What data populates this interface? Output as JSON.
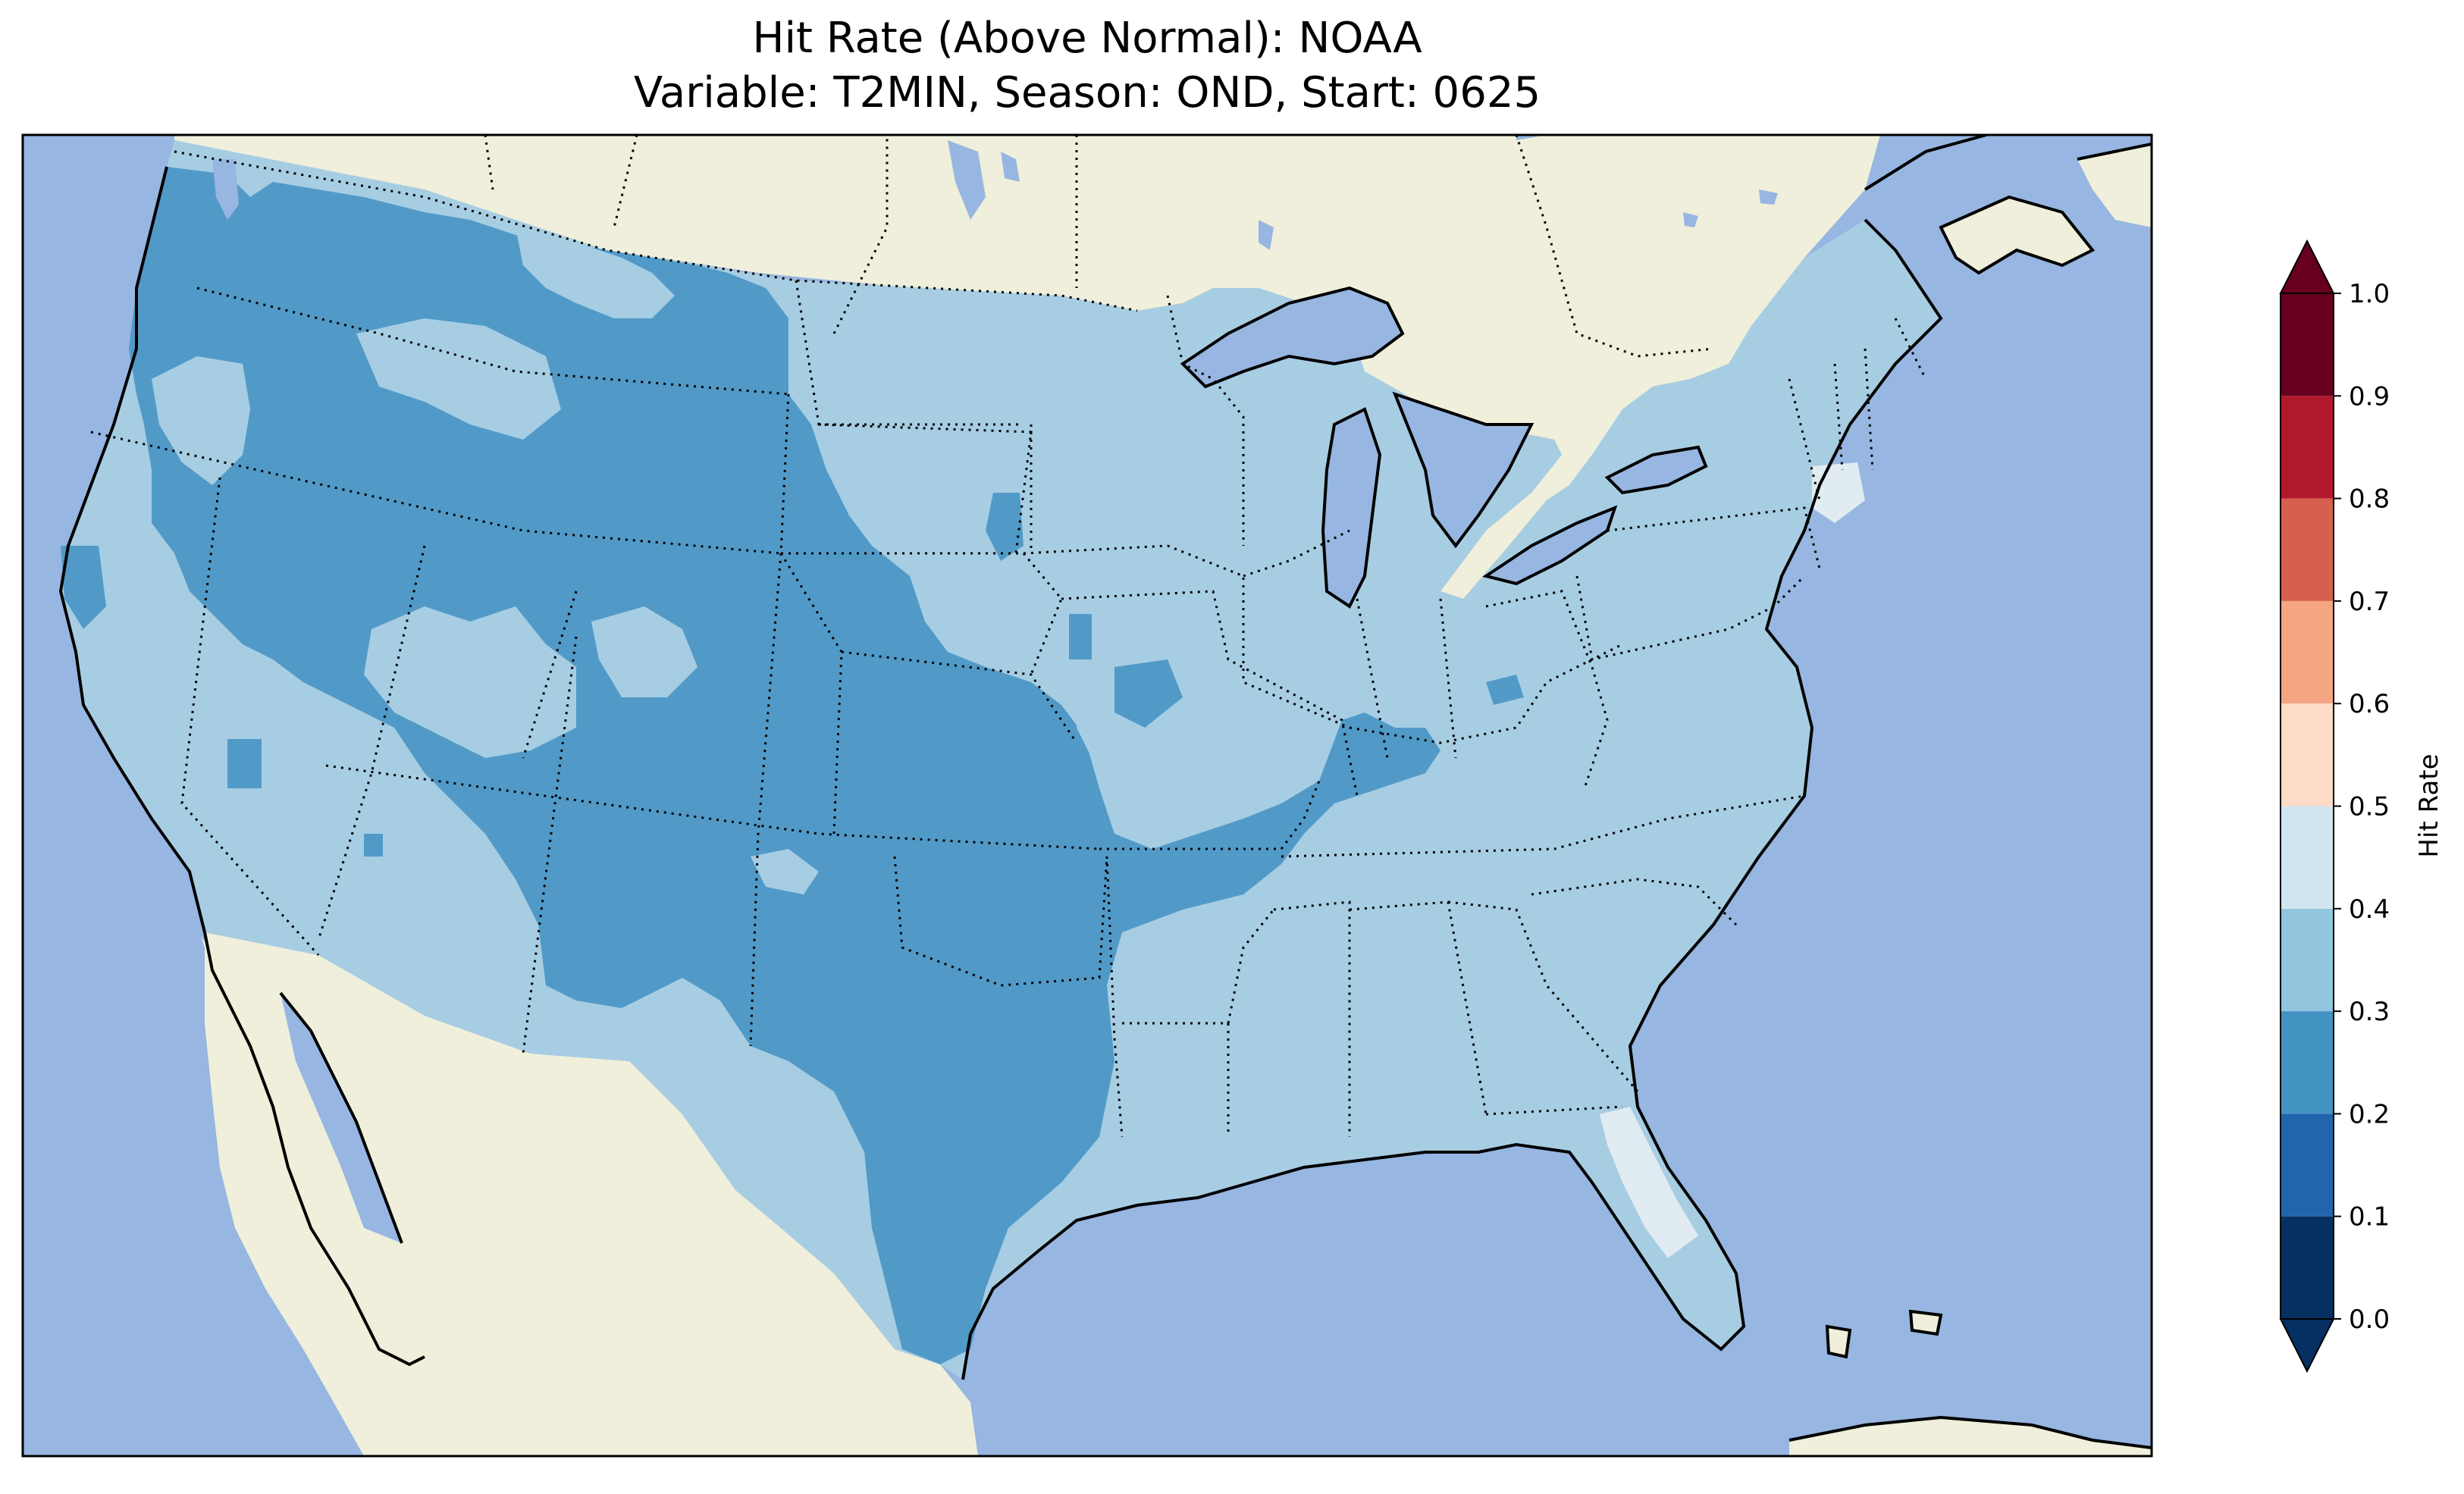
{
  "title": {
    "line1": "Hit Rate (Above Normal): NOAA",
    "line2": "Variable: T2MIN, Season: OND, Start: 0625"
  },
  "colorbar": {
    "label": "Hit Rate",
    "ticks": [
      "0.0",
      "0.1",
      "0.2",
      "0.3",
      "0.4",
      "0.5",
      "0.6",
      "0.7",
      "0.8",
      "0.9",
      "1.0"
    ],
    "bins": [
      {
        "range": [
          0.0,
          0.1
        ],
        "color": "#053061"
      },
      {
        "range": [
          0.1,
          0.2
        ],
        "color": "#2166ac"
      },
      {
        "range": [
          0.2,
          0.3
        ],
        "color": "#4393c3"
      },
      {
        "range": [
          0.3,
          0.4
        ],
        "color": "#92c5de"
      },
      {
        "range": [
          0.4,
          0.5
        ],
        "color": "#d1e5f0"
      },
      {
        "range": [
          0.5,
          0.6
        ],
        "color": "#fddbc7"
      },
      {
        "range": [
          0.6,
          0.7
        ],
        "color": "#f4a582"
      },
      {
        "range": [
          0.7,
          0.8
        ],
        "color": "#d6604d"
      },
      {
        "range": [
          0.8,
          0.9
        ],
        "color": "#b2182b"
      },
      {
        "range": [
          0.9,
          1.0
        ],
        "color": "#67001f"
      }
    ],
    "extend": "both"
  },
  "colors": {
    "ocean": "#97b6e1",
    "land": "#efefdb",
    "bin_0.2_0.3": "#519ac8",
    "bin_0.3_0.4": "#a7cde3",
    "bin_0.4_0.5": "#e0ebf2"
  },
  "map_regions": [
    {
      "region": "Pacific Northwest / Northern Rockies",
      "hit_rate_bin": "0.2-0.3"
    },
    {
      "region": "Great Basin / Central Rockies",
      "hit_rate_bin": "0.2-0.3"
    },
    {
      "region": "Southern Plains / Texas / Oklahoma",
      "hit_rate_bin": "0.2-0.3"
    },
    {
      "region": "Arkansas / Missouri / Tennessee border",
      "hit_rate_bin": "0.2-0.3"
    },
    {
      "region": "California / Southwest / Midwest / East",
      "hit_rate_bin": "0.3-0.4"
    },
    {
      "region": "Florida peninsula",
      "hit_rate_bin": "0.4-0.5"
    },
    {
      "region": "Southern New England",
      "hit_rate_bin": "0.4-0.5"
    }
  ]
}
